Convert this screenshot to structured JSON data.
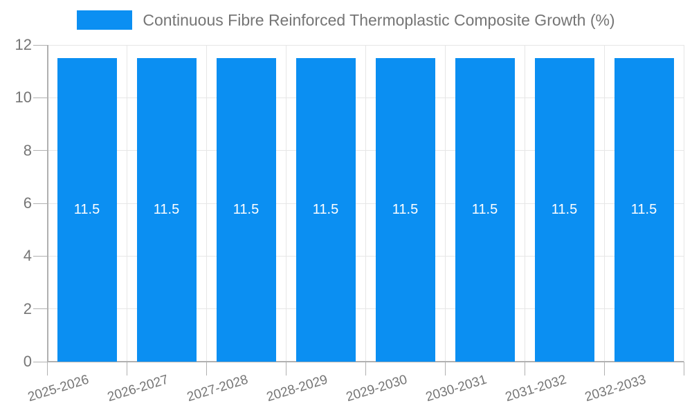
{
  "legend": {
    "swatch": "blue-series-swatch"
  },
  "chart_data": {
    "type": "bar",
    "title": "Continuous Fibre Reinforced Thermoplastic Composite Growth (%)",
    "categories": [
      "2025-2026",
      "2026-2027",
      "2027-2028",
      "2028-2029",
      "2029-2030",
      "2030-2031",
      "2031-2032",
      "2032-2033"
    ],
    "values": [
      11.5,
      11.5,
      11.5,
      11.5,
      11.5,
      11.5,
      11.5,
      11.5
    ],
    "value_labels": [
      "11.5",
      "11.5",
      "11.5",
      "11.5",
      "11.5",
      "11.5",
      "11.5",
      "11.5"
    ],
    "xlabel": "",
    "ylabel": "",
    "ylim": [
      0,
      12
    ],
    "yticks": [
      0,
      2,
      4,
      6,
      8,
      10,
      12
    ],
    "grid": true,
    "legend_position": "top",
    "bar_color": "#0b8ff2",
    "value_label_color": "#ffffff",
    "axis_text_color": "#757575",
    "gridline_color": "#e6e6e6",
    "axis_line_color": "#b0b0b0"
  }
}
